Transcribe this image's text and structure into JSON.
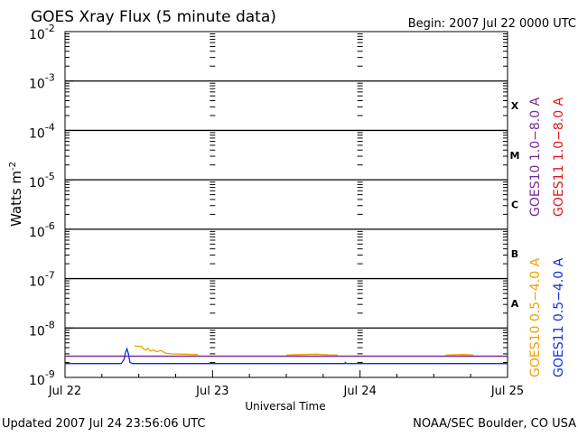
{
  "chart_data": {
    "type": "line",
    "title": "GOES Xray Flux (5 minute data)",
    "begin_label": "Begin:  2007 Jul 22 0000 UTC",
    "xlabel": "Universal Time",
    "ylabel_base": "Watts m",
    "ylabel_exp": "-2",
    "y_scale": "log",
    "ylim": [
      1e-09,
      0.01
    ],
    "xlim_days": [
      0,
      3
    ],
    "x_ticks": [
      {
        "day": 0,
        "label": "Jul 22"
      },
      {
        "day": 1,
        "label": "Jul 23"
      },
      {
        "day": 2,
        "label": "Jul 24"
      },
      {
        "day": 3,
        "label": "Jul 25"
      }
    ],
    "y_ticks": [
      {
        "exp": -2,
        "base": "10",
        "sup": "-2"
      },
      {
        "exp": -3,
        "base": "10",
        "sup": "-3"
      },
      {
        "exp": -4,
        "base": "10",
        "sup": "-4"
      },
      {
        "exp": -5,
        "base": "10",
        "sup": "-5"
      },
      {
        "exp": -6,
        "base": "10",
        "sup": "-6"
      },
      {
        "exp": -7,
        "base": "10",
        "sup": "-7"
      },
      {
        "exp": -8,
        "base": "10",
        "sup": "-8"
      },
      {
        "exp": -9,
        "base": "10",
        "sup": "-9"
      }
    ],
    "flare_classes": [
      {
        "label": "X",
        "exp": -3.5
      },
      {
        "label": "M",
        "exp": -4.5
      },
      {
        "label": "C",
        "exp": -5.5
      },
      {
        "label": "B",
        "exp": -6.5
      },
      {
        "label": "A",
        "exp": -7.5
      }
    ],
    "gridlines_at_exp": [
      -3,
      -4,
      -5,
      -6,
      -7,
      -8
    ],
    "legend_top": [
      {
        "label": "GOES10 1.0−8.0 A",
        "color": "#7a2a9a"
      },
      {
        "label": "GOES11 1.0−8.0 A",
        "color": "#e01818"
      }
    ],
    "legend_bottom": [
      {
        "label": "GOES10 0.5−4.0 A",
        "color": "#f0a000"
      },
      {
        "label": "GOES11 0.5−4.0 A",
        "color": "#1030e0"
      }
    ],
    "series": [
      {
        "name": "GOES11 1.0−8.0 A",
        "color": "#e01818",
        "points": [
          [
            0,
            2.7e-09
          ],
          [
            3,
            2.7e-09
          ]
        ]
      },
      {
        "name": "GOES10 1.0−8.0 A",
        "color": "#7a2a9a",
        "points": [
          [
            0,
            2.68e-09
          ],
          [
            3,
            2.68e-09
          ]
        ]
      },
      {
        "name": "GOES10 0.5−4.0 A",
        "color": "#f0a000",
        "segments": [
          [
            [
              0.47,
              4.3e-09
            ],
            [
              0.52,
              4.2e-09
            ],
            [
              0.53,
              3.8e-09
            ],
            [
              0.55,
              3.6e-09
            ],
            [
              0.56,
              3.9e-09
            ],
            [
              0.58,
              3.4e-09
            ],
            [
              0.6,
              3.6e-09
            ],
            [
              0.62,
              3.3e-09
            ],
            [
              0.65,
              3.5e-09
            ],
            [
              0.68,
              3.1e-09
            ],
            [
              0.72,
              3e-09
            ],
            [
              0.8,
              2.95e-09
            ],
            [
              0.9,
              2.9e-09
            ]
          ],
          [
            [
              1.5,
              2.85e-09
            ],
            [
              1.6,
              2.9e-09
            ],
            [
              1.7,
              2.95e-09
            ],
            [
              1.8,
              2.85e-09
            ],
            [
              1.85,
              2.85e-09
            ]
          ],
          [
            [
              2.58,
              2.85e-09
            ],
            [
              2.7,
              2.9e-09
            ],
            [
              2.77,
              2.85e-09
            ]
          ]
        ]
      },
      {
        "name": "GOES11 0.5−4.0 A",
        "color": "#1030e0",
        "points": [
          [
            0,
            1.9e-09
          ],
          [
            0.38,
            1.9e-09
          ],
          [
            0.4,
            2.3e-09
          ],
          [
            0.41,
            3.2e-09
          ],
          [
            0.42,
            3.8e-09
          ],
          [
            0.43,
            3e-09
          ],
          [
            0.44,
            2e-09
          ],
          [
            0.46,
            1.9e-09
          ],
          [
            1.9,
            1.9e-09
          ],
          [
            1.9,
            2e-09
          ],
          [
            1.91,
            1.9e-09
          ],
          [
            3,
            1.9e-09
          ]
        ]
      }
    ]
  },
  "footer": {
    "updated": "Updated 2007 Jul 24 23:56:06 UTC",
    "source": "NOAA/SEC Boulder, CO USA"
  }
}
